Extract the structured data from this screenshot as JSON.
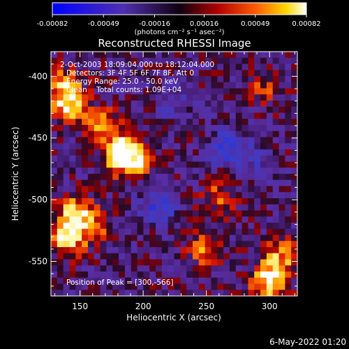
{
  "colorbar": {
    "ticks": [
      "-0.00082",
      "-0.00049",
      "-0.00016",
      "0.00016",
      "0.00049",
      "0.00082"
    ],
    "units": "(photons cm⁻² s⁻¹ asec⁻²)",
    "range": [
      -0.00082,
      0.00082
    ]
  },
  "chart_data": {
    "type": "heatmap",
    "title": "Reconstructed RHESSI Image",
    "xlabel": "Heliocentric X (arcsec)",
    "ylabel": "Heliocentric Y (arcsec)",
    "xlim": [
      127,
      322
    ],
    "ylim": [
      -578,
      -380
    ],
    "xticks": [
      "150",
      "200",
      "250",
      "300"
    ],
    "yticks": [
      "-400",
      "-450",
      "-500",
      "-550"
    ],
    "xtick_values": [
      150,
      200,
      250,
      300
    ],
    "ytick_values": [
      -400,
      -450,
      -500,
      -550
    ],
    "colorscale": "RHESSI blue-purple-red-yellow-white",
    "grid": false,
    "info_lines": [
      "2-Oct-2003 18:09:04.000 to 18:12:04.000",
      "Detectors: 3F 4F 5F 6F 7F 8F, Att 0",
      "Energy Range: 25.0 - 50.0 keV",
      "Clean    Total counts: 1.09E+04"
    ],
    "peak_label": "Position of Peak = [300,-566]",
    "peak": [
      300,
      -566
    ],
    "emission_regions": [
      {
        "x": 140,
        "y": -423,
        "level": 0.85
      },
      {
        "x": 138,
        "y": -405,
        "level": 0.55
      },
      {
        "x": 168,
        "y": -440,
        "level": 0.7
      },
      {
        "x": 182,
        "y": -462,
        "level": 0.9
      },
      {
        "x": 192,
        "y": -470,
        "level": 0.75
      },
      {
        "x": 145,
        "y": -510,
        "level": 0.75
      },
      {
        "x": 140,
        "y": -532,
        "level": 0.8
      },
      {
        "x": 160,
        "y": -520,
        "level": 0.55
      },
      {
        "x": 248,
        "y": -540,
        "level": 0.55
      },
      {
        "x": 260,
        "y": -498,
        "level": 0.45
      },
      {
        "x": 295,
        "y": -410,
        "level": 0.35
      },
      {
        "x": 300,
        "y": -566,
        "level": 1.0
      },
      {
        "x": 310,
        "y": -545,
        "level": 0.6
      },
      {
        "x": 212,
        "y": -505,
        "level": -0.55
      },
      {
        "x": 267,
        "y": -458,
        "level": -0.6
      },
      {
        "x": 225,
        "y": -420,
        "level": -0.35
      },
      {
        "x": 290,
        "y": -470,
        "level": -0.3
      }
    ]
  },
  "footer": {
    "timestamp": "6-May-2022 01:20"
  }
}
